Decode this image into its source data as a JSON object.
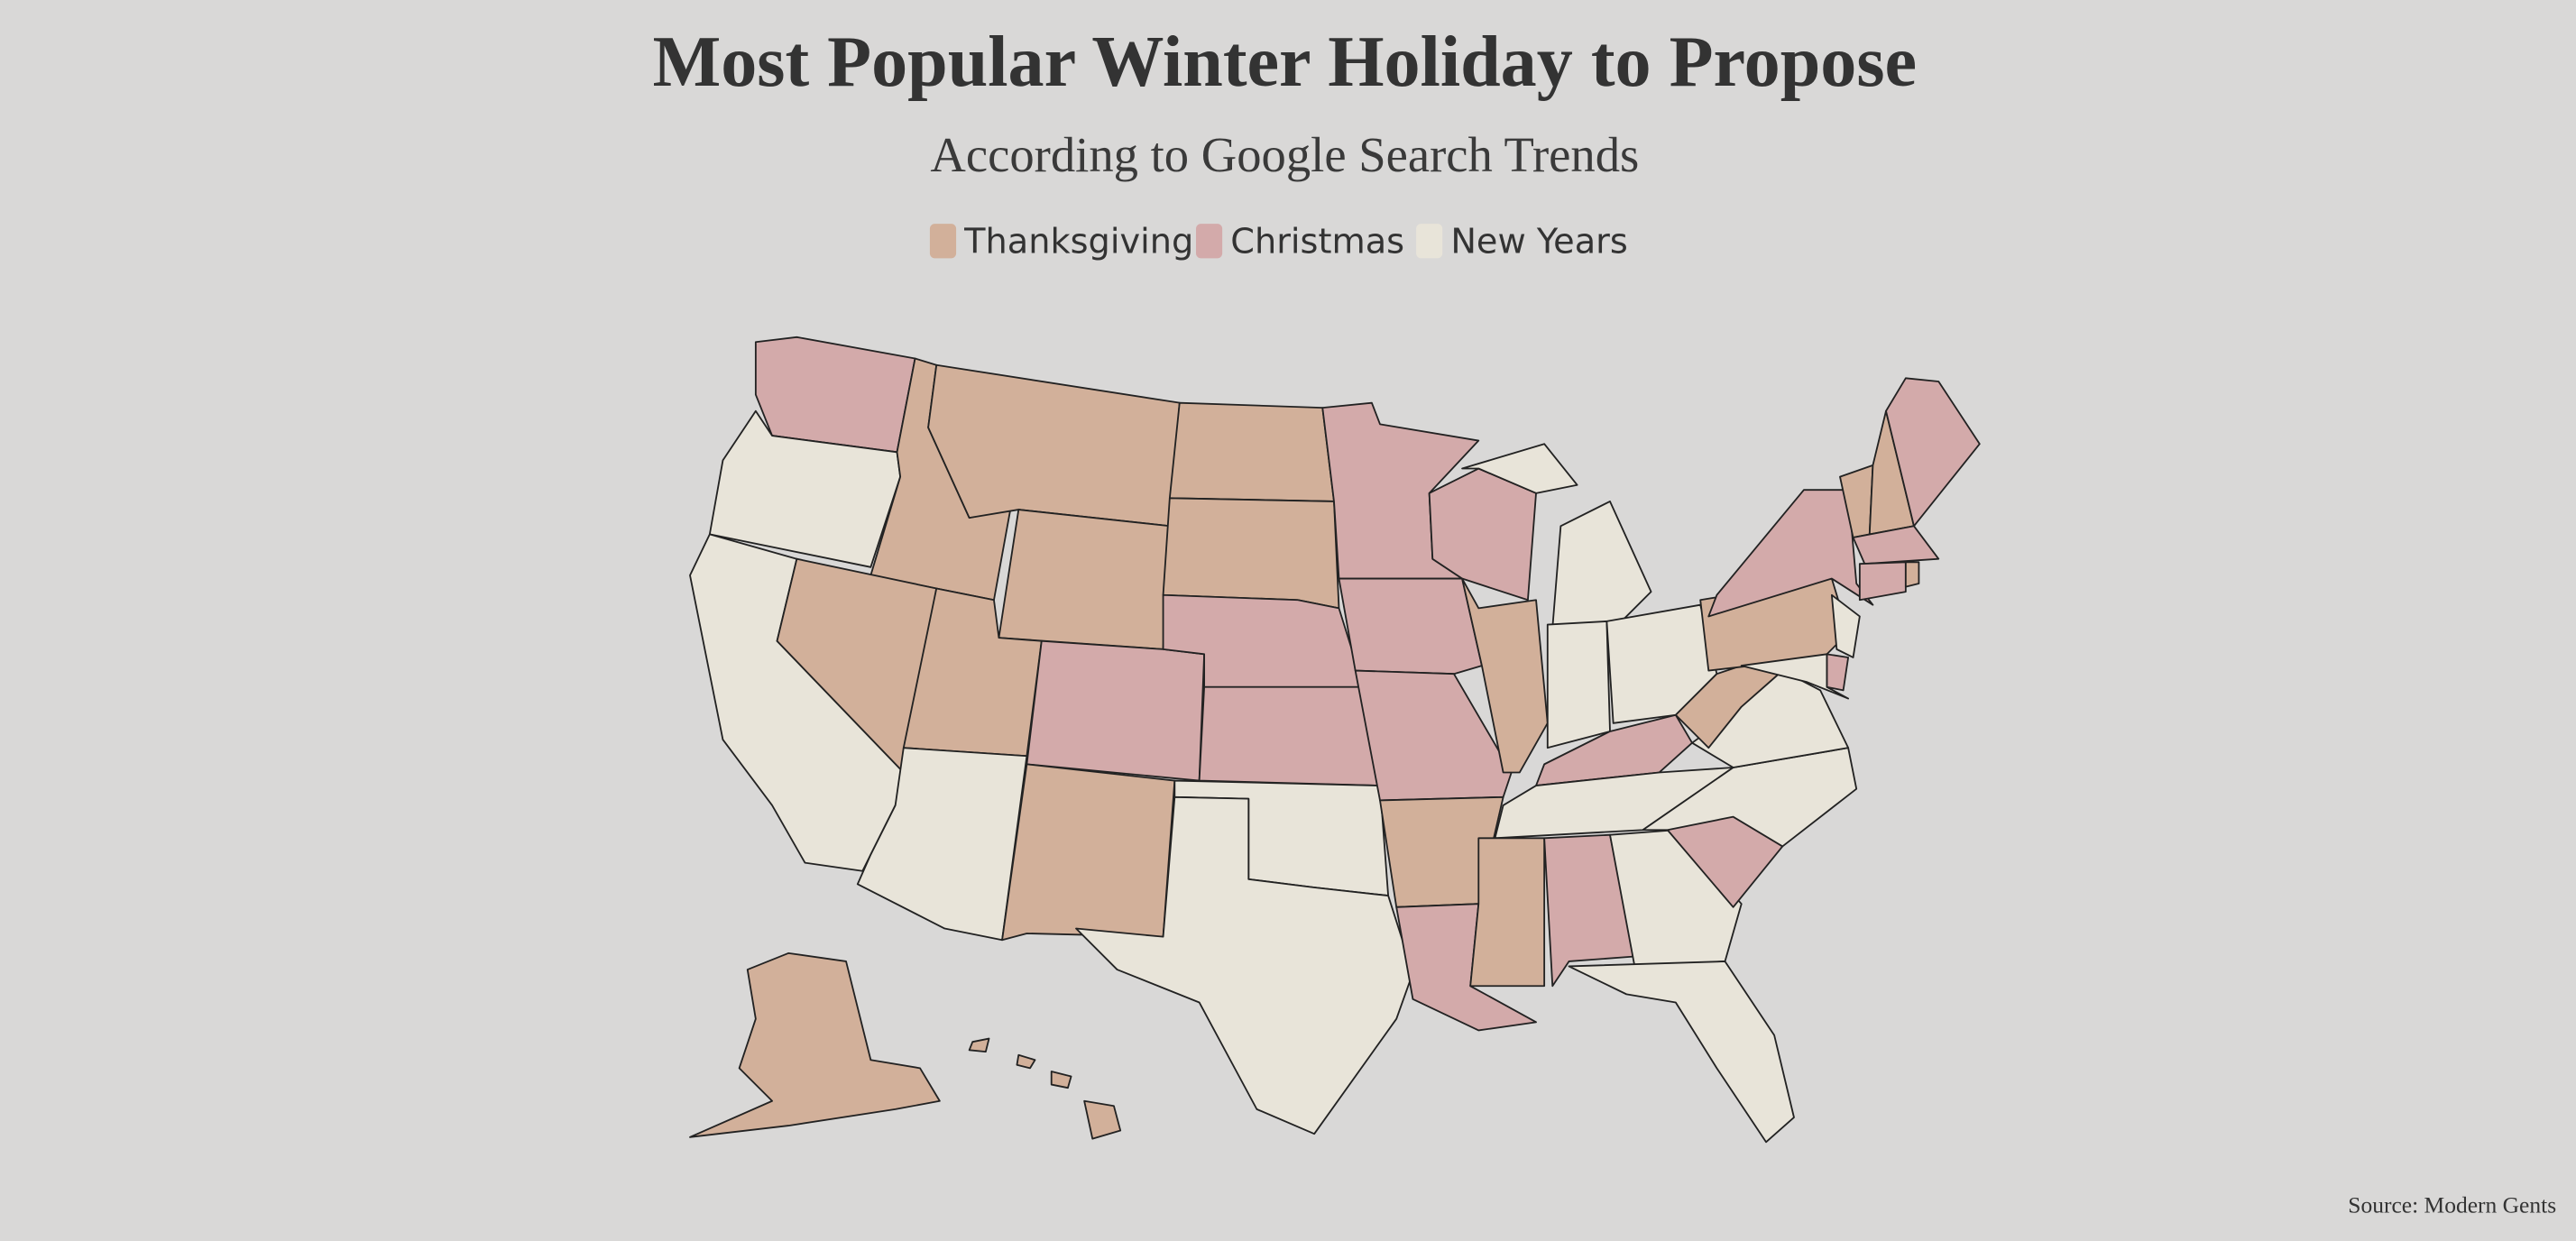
{
  "title": "Most Popular Winter Holiday to Propose",
  "subtitle": "According to Google Search Trends",
  "legend": [
    {
      "name": "Thanksgiving",
      "color": "#d2b09a"
    },
    {
      "name": "Christmas",
      "color": "#d3aaaa"
    },
    {
      "name": "New Years",
      "color": "#e8e4d9"
    }
  ],
  "source": "Source: Modern Gents"
}
